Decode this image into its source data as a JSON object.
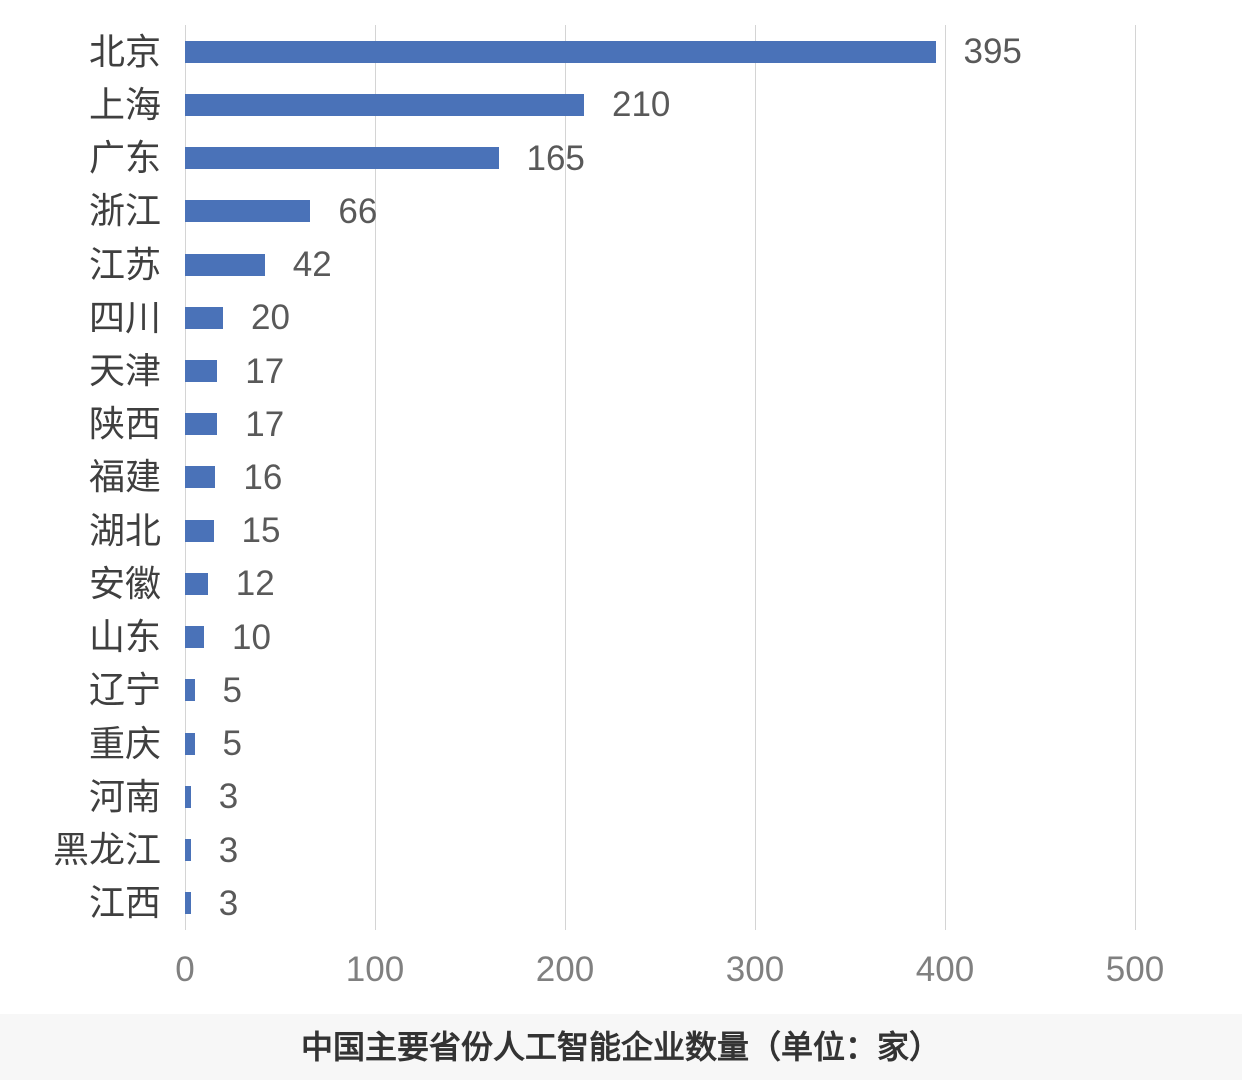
{
  "chart_data": {
    "type": "bar",
    "orientation": "horizontal",
    "title": "中国主要省份人工智能企业数量（单位：家）",
    "categories": [
      "北京",
      "上海",
      "广东",
      "浙江",
      "江苏",
      "四川",
      "天津",
      "陕西",
      "福建",
      "湖北",
      "安徽",
      "山东",
      "辽宁",
      "重庆",
      "河南",
      "黑龙江",
      "江西"
    ],
    "values": [
      395,
      210,
      165,
      66,
      42,
      20,
      17,
      17,
      16,
      15,
      12,
      10,
      5,
      5,
      3,
      3,
      3
    ],
    "xlim": [
      0,
      500
    ],
    "x_ticks": [
      0,
      100,
      200,
      300,
      400,
      500
    ],
    "grid": "vertical-on",
    "legend": "none",
    "data_labels": "outside-end",
    "colors": {
      "bar": "#4A72B8",
      "gridline": "#D4D4D4",
      "category_label": "#3F3F3F",
      "value_label": "#595959",
      "tick_label": "#808080",
      "title": "#333333",
      "title_band_bg": "#F7F7F7",
      "plot_bg": "#FFFFFF"
    }
  }
}
